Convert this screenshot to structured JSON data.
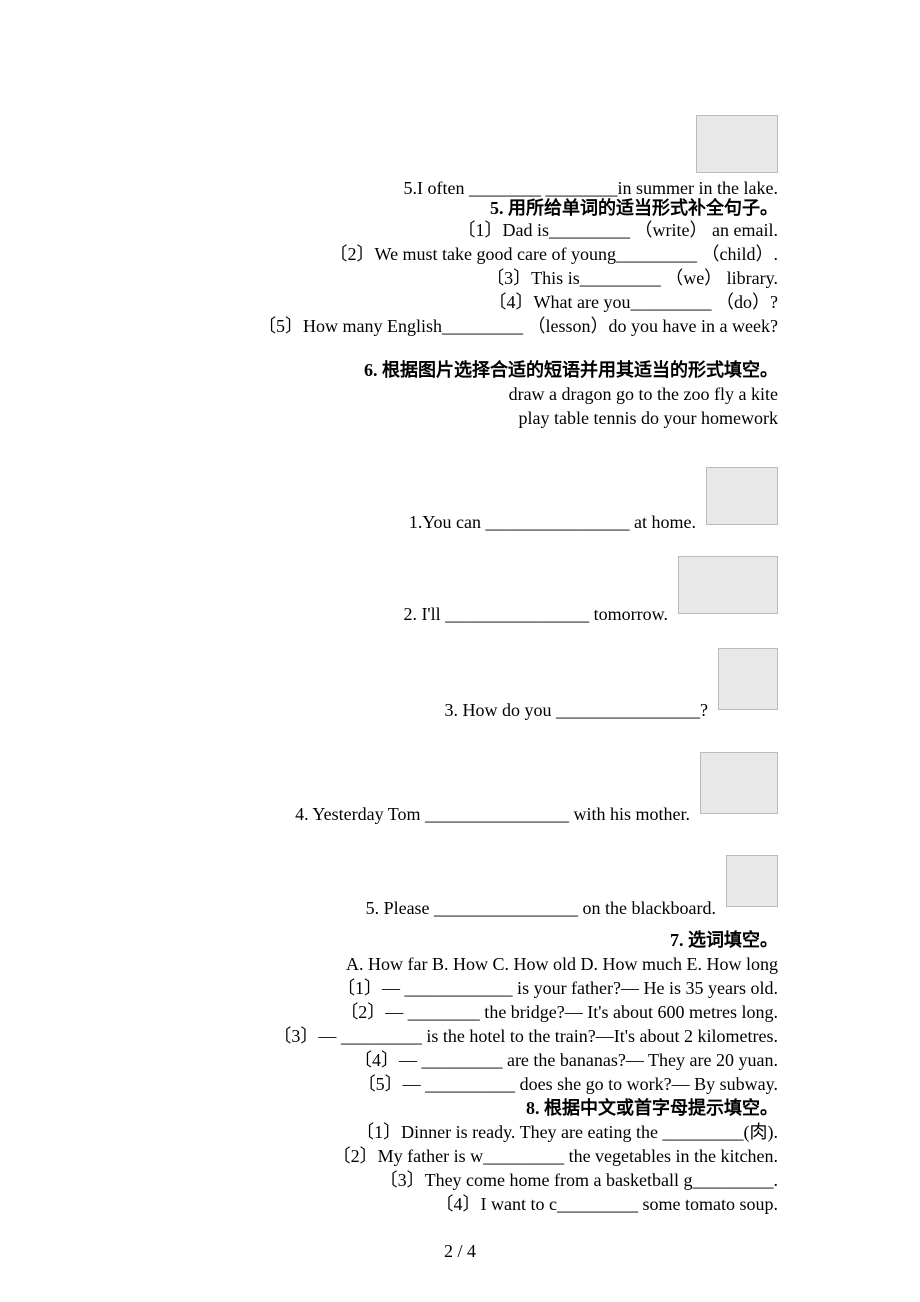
{
  "q4": {
    "item5": "5.I often ________ ________in summer in the lake."
  },
  "q5": {
    "title": "5. 用所给单词的适当形式补全句子。",
    "items": [
      "〔1〕Dad is_________ （write） an email.",
      "〔2〕We must take good care of young_________ （child）.",
      "〔3〕This is_________ （we） library.",
      "〔4〕What are you_________ （do）?",
      "〔5〕How many English_________ （lesson）do you have in a week?"
    ]
  },
  "q6": {
    "title": "6. 根据图片选择合适的短语并用其适当的形式填空。",
    "options_line1": "draw a dragon go to the zoo fly a kite",
    "options_line2": "play table tennis do your homework",
    "items": [
      "1.You can ________________ at home.",
      "2. I'll ________________ tomorrow.",
      "3. How do you ________________?",
      "4. Yesterday Tom ________________ with his mother.",
      "5. Please ________________ on the blackboard."
    ]
  },
  "q7": {
    "title": "7. 选词填空。",
    "options": "A. How far   B. How   C. How old   D. How much   E. How long",
    "items": [
      "〔1〕— ____________ is your father?— He is 35 years old.",
      "〔2〕— ________ the bridge?— It's about 600 metres long.",
      "〔3〕— _________ is the hotel to the train?—It's about 2 kilometres.",
      "〔4〕— _________ are the bananas?— They are 20 yuan.",
      "〔5〕— __________ does she go to work?— By subway."
    ]
  },
  "q8": {
    "title": "8. 根据中文或首字母提示填空。",
    "items": [
      "〔1〕Dinner is ready. They are eating the _________(肉).",
      "〔2〕My father is w_________ the vegetables in the kitchen.",
      "〔3〕They come home from a basketball g_________.",
      "〔4〕I want to c_________ some tomato soup."
    ]
  },
  "page": "2 / 4",
  "colors": {
    "text": "#000000",
    "bg": "#ffffff",
    "img_bg": "#e8e8e8"
  },
  "typography": {
    "base_font_size": 18,
    "font_family": "Times New Roman, SimSun, serif",
    "font_weight_title": "bold"
  }
}
